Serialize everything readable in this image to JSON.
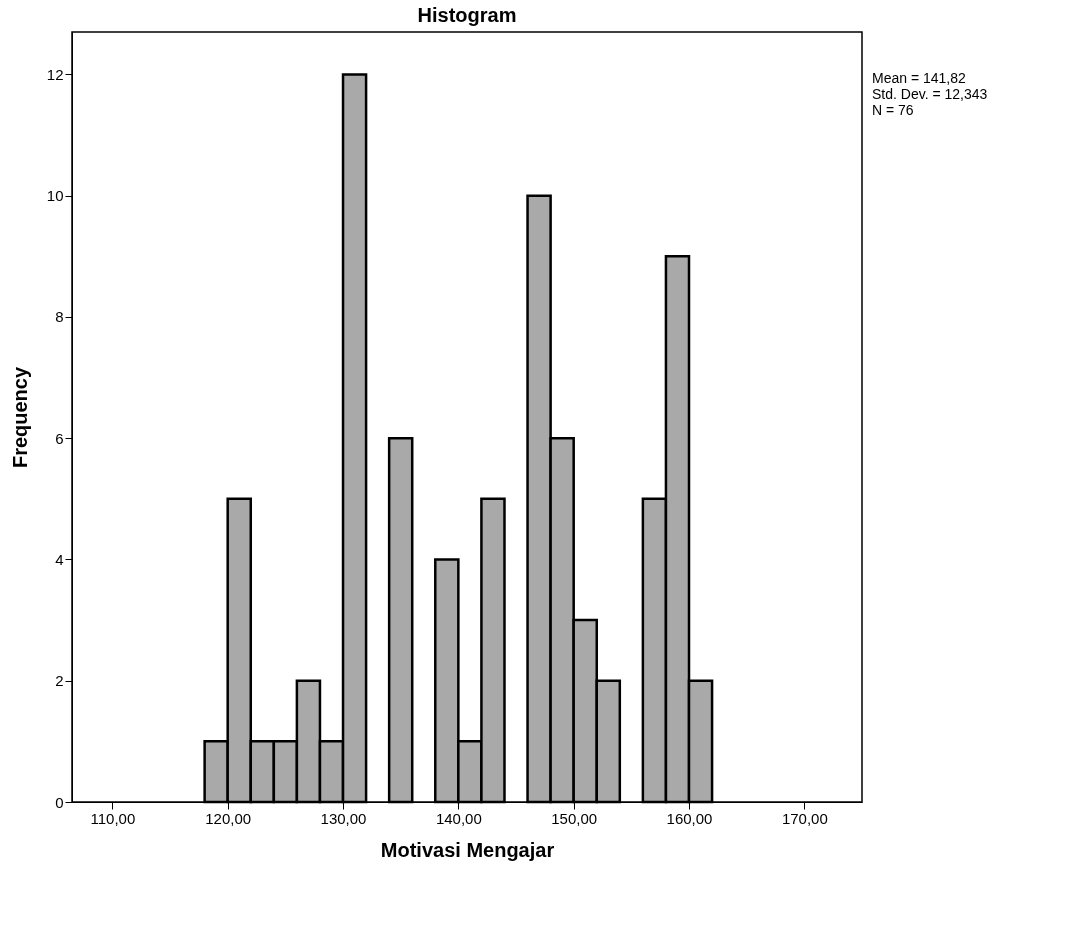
{
  "chart_data": {
    "type": "histogram",
    "title": "Histogram",
    "xlabel": "Motivasi Mengajar",
    "ylabel": "Frequency",
    "bins": [
      118,
      120,
      122,
      124,
      126,
      128,
      130,
      132,
      134,
      136,
      138,
      140,
      142,
      144,
      146,
      148,
      150,
      152,
      154,
      156,
      158,
      160,
      162
    ],
    "values": [
      1,
      5,
      1,
      1,
      2,
      1,
      12,
      0,
      6,
      0,
      4,
      1,
      5,
      0,
      10,
      6,
      3,
      2,
      0,
      5,
      9,
      2
    ],
    "color": "#a9a9a9",
    "xlim": [
      106.5,
      175
    ],
    "xticks": [
      {
        "value": 110,
        "label": "110,00"
      },
      {
        "value": 120,
        "label": "120,00"
      },
      {
        "value": 130,
        "label": "130,00"
      },
      {
        "value": 140,
        "label": "140,00"
      },
      {
        "value": 150,
        "label": "150,00"
      },
      {
        "value": 160,
        "label": "160,00"
      },
      {
        "value": 170,
        "label": "170,00"
      }
    ],
    "ylim": [
      0,
      12.7
    ],
    "yticks": [
      0,
      2,
      4,
      6,
      8,
      10,
      12
    ],
    "annotations": [
      "Mean = 141,82",
      "Std. Dev. = 12,343",
      "N = 76"
    ],
    "grid": false
  }
}
